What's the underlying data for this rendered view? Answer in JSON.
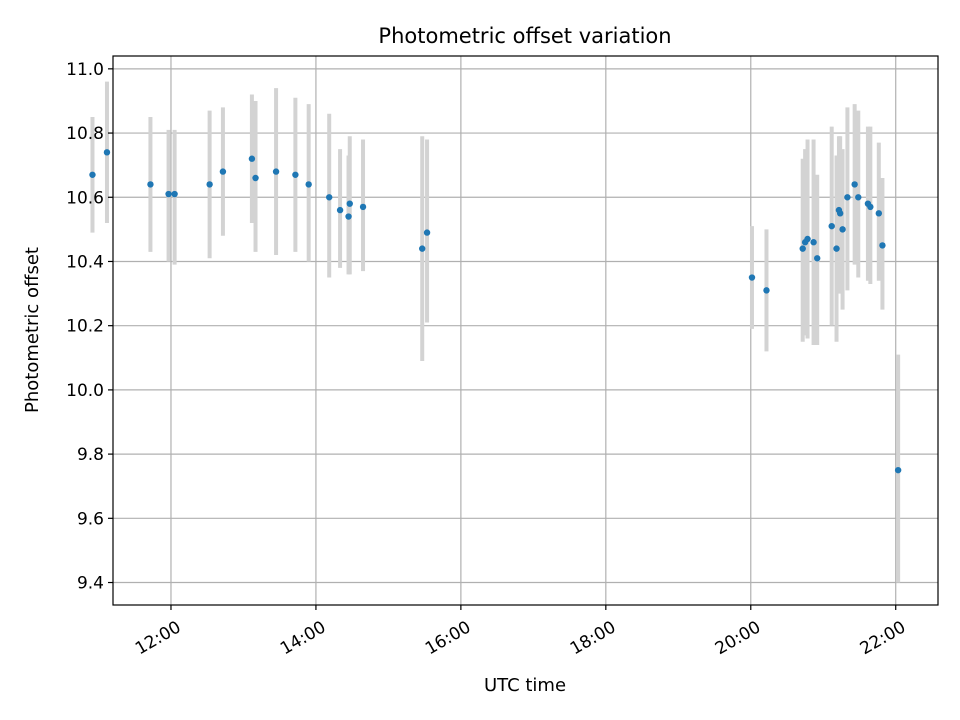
{
  "chart_data": {
    "type": "scatter",
    "title": "Photometric offset variation",
    "xlabel": "UTC time",
    "ylabel": "Photometric offset",
    "xlim": [
      "11:12",
      "22:35"
    ],
    "ylim": [
      9.33,
      11.04
    ],
    "x_ticks": [
      "12:00",
      "14:00",
      "16:00",
      "18:00",
      "20:00",
      "22:00"
    ],
    "y_ticks": [
      "9.4",
      "9.6",
      "9.8",
      "10.0",
      "10.2",
      "10.4",
      "10.6",
      "10.8",
      "11.0"
    ],
    "grid": true,
    "colors": {
      "point": "#1f77b4",
      "errorbar": "#d3d3d3",
      "grid": "#b0b0b0"
    },
    "points": [
      {
        "x": "10:55",
        "y": 10.67,
        "ylo": 10.49,
        "yhi": 10.85
      },
      {
        "x": "11:07",
        "y": 10.74,
        "ylo": 10.52,
        "yhi": 10.96
      },
      {
        "x": "11:43",
        "y": 10.64,
        "ylo": 10.43,
        "yhi": 10.85
      },
      {
        "x": "11:58",
        "y": 10.61,
        "ylo": 10.4,
        "yhi": 10.81
      },
      {
        "x": "12:03",
        "y": 10.61,
        "ylo": 10.39,
        "yhi": 10.81
      },
      {
        "x": "12:32",
        "y": 10.64,
        "ylo": 10.41,
        "yhi": 10.87
      },
      {
        "x": "12:43",
        "y": 10.68,
        "ylo": 10.48,
        "yhi": 10.88
      },
      {
        "x": "13:07",
        "y": 10.72,
        "ylo": 10.52,
        "yhi": 10.92
      },
      {
        "x": "13:10",
        "y": 10.66,
        "ylo": 10.43,
        "yhi": 10.9
      },
      {
        "x": "13:27",
        "y": 10.68,
        "ylo": 10.42,
        "yhi": 10.94
      },
      {
        "x": "13:43",
        "y": 10.67,
        "ylo": 10.43,
        "yhi": 10.91
      },
      {
        "x": "13:54",
        "y": 10.64,
        "ylo": 10.4,
        "yhi": 10.89
      },
      {
        "x": "14:11",
        "y": 10.6,
        "ylo": 10.35,
        "yhi": 10.86
      },
      {
        "x": "14:20",
        "y": 10.56,
        "ylo": 10.38,
        "yhi": 10.75
      },
      {
        "x": "14:27",
        "y": 10.54,
        "ylo": 10.36,
        "yhi": 10.73
      },
      {
        "x": "14:28",
        "y": 10.58,
        "ylo": 10.36,
        "yhi": 10.79
      },
      {
        "x": "14:39",
        "y": 10.57,
        "ylo": 10.37,
        "yhi": 10.78
      },
      {
        "x": "15:28",
        "y": 10.44,
        "ylo": 10.09,
        "yhi": 10.79
      },
      {
        "x": "15:32",
        "y": 10.49,
        "ylo": 10.21,
        "yhi": 10.78
      },
      {
        "x": "20:01",
        "y": 10.35,
        "ylo": 10.19,
        "yhi": 10.51
      },
      {
        "x": "20:13",
        "y": 10.31,
        "ylo": 10.12,
        "yhi": 10.5
      },
      {
        "x": "20:43",
        "y": 10.44,
        "ylo": 10.15,
        "yhi": 10.72
      },
      {
        "x": "20:45",
        "y": 10.46,
        "ylo": 10.17,
        "yhi": 10.75
      },
      {
        "x": "20:47",
        "y": 10.47,
        "ylo": 10.16,
        "yhi": 10.78
      },
      {
        "x": "20:52",
        "y": 10.46,
        "ylo": 10.14,
        "yhi": 10.78
      },
      {
        "x": "20:55",
        "y": 10.41,
        "ylo": 10.14,
        "yhi": 10.67
      },
      {
        "x": "21:07",
        "y": 10.51,
        "ylo": 10.2,
        "yhi": 10.82
      },
      {
        "x": "21:11",
        "y": 10.44,
        "ylo": 10.15,
        "yhi": 10.73
      },
      {
        "x": "21:13",
        "y": 10.56,
        "ylo": 10.31,
        "yhi": 10.79
      },
      {
        "x": "21:14",
        "y": 10.55,
        "ylo": 10.3,
        "yhi": 10.79
      },
      {
        "x": "21:16",
        "y": 10.5,
        "ylo": 10.25,
        "yhi": 10.75
      },
      {
        "x": "21:20",
        "y": 10.6,
        "ylo": 10.31,
        "yhi": 10.88
      },
      {
        "x": "21:26",
        "y": 10.64,
        "ylo": 10.39,
        "yhi": 10.89
      },
      {
        "x": "21:29",
        "y": 10.6,
        "ylo": 10.35,
        "yhi": 10.87
      },
      {
        "x": "21:37",
        "y": 10.58,
        "ylo": 10.34,
        "yhi": 10.82
      },
      {
        "x": "21:39",
        "y": 10.57,
        "ylo": 10.33,
        "yhi": 10.82
      },
      {
        "x": "21:46",
        "y": 10.55,
        "ylo": 10.34,
        "yhi": 10.77
      },
      {
        "x": "21:49",
        "y": 10.45,
        "ylo": 10.25,
        "yhi": 10.66
      },
      {
        "x": "22:02",
        "y": 9.75,
        "ylo": 9.4,
        "yhi": 10.11
      }
    ]
  }
}
